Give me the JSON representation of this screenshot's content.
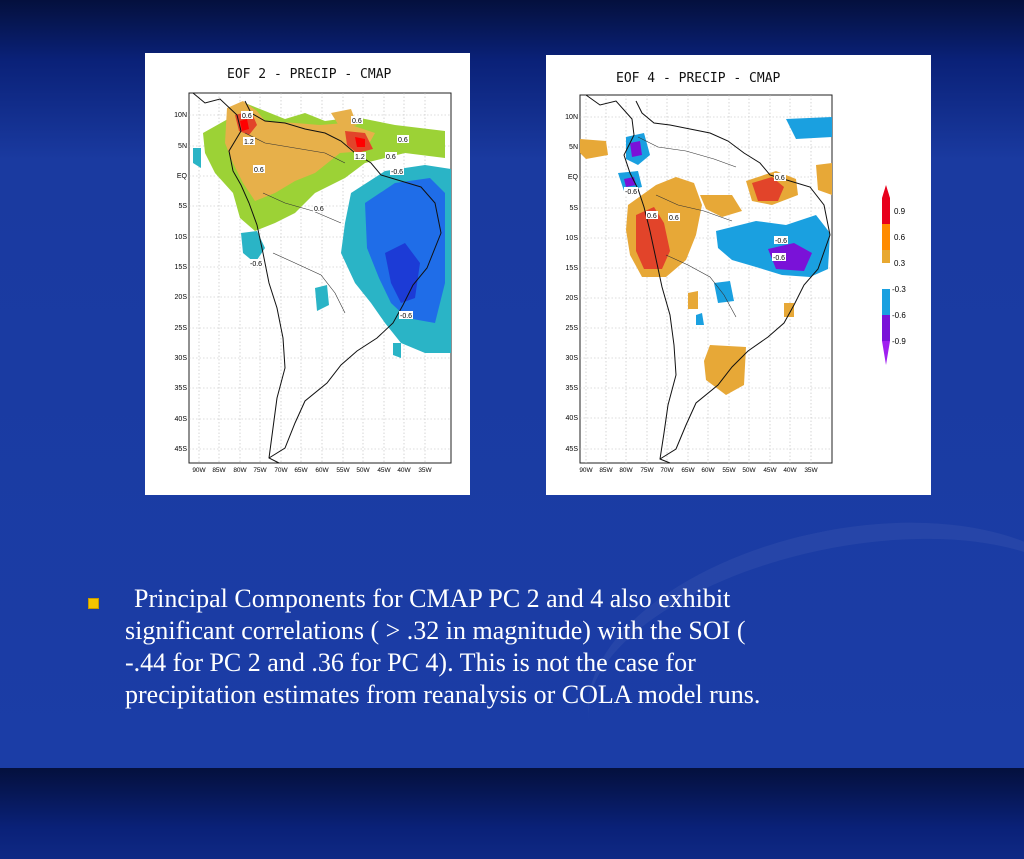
{
  "maps": [
    {
      "title": "EOF 2 - PRECIP - CMAP",
      "lat_ticks": [
        "10N",
        "5N",
        "EQ",
        "5S",
        "10S",
        "15S",
        "20S",
        "25S",
        "30S",
        "35S",
        "40S",
        "45S"
      ],
      "lon_ticks": [
        "90W",
        "85W",
        "80W",
        "75W",
        "70W",
        "65W",
        "60W",
        "55W",
        "50W",
        "45W",
        "40W",
        "35W"
      ],
      "contour_labels": [
        "0.6",
        "1.2",
        "0.6",
        "0.6",
        "0.6",
        "1.2",
        "0.6",
        "-0.6",
        "0.6",
        "-0.6",
        "-0.6",
        "-0.6"
      ]
    },
    {
      "title": "EOF 4 - PRECIP - CMAP",
      "lat_ticks": [
        "10N",
        "5N",
        "EQ",
        "5S",
        "10S",
        "15S",
        "20S",
        "25S",
        "30S",
        "35S",
        "40S",
        "45S"
      ],
      "lon_ticks": [
        "90W",
        "85W",
        "80W",
        "75W",
        "70W",
        "65W",
        "60W",
        "55W",
        "50W",
        "45W",
        "40W",
        "35W"
      ],
      "contour_labels": [
        "-0.6",
        "0.6",
        "0.6",
        "0.6",
        "-0.6",
        "-0.6"
      ]
    }
  ],
  "legend": {
    "labels": [
      "0.9",
      "0.6",
      "0.3",
      "-0.3",
      "-0.6",
      "-0.9"
    ],
    "colors": [
      "#e8001c",
      "#ff8a00",
      "#e8a830",
      "#1aa0e0",
      "#7a12d8",
      "#a020f0"
    ]
  },
  "bullet": {
    "line1": "Principal Components for CMAP PC 2 and 4 also exhibit",
    "line2": "significant correlations ( > .32 in magnitude)  with the SOI (",
    "line3": "-.44 for PC 2 and .36 for PC 4). This is not the case for",
    "line4": "precipitation estimates from reanalysis or COLA model runs."
  }
}
